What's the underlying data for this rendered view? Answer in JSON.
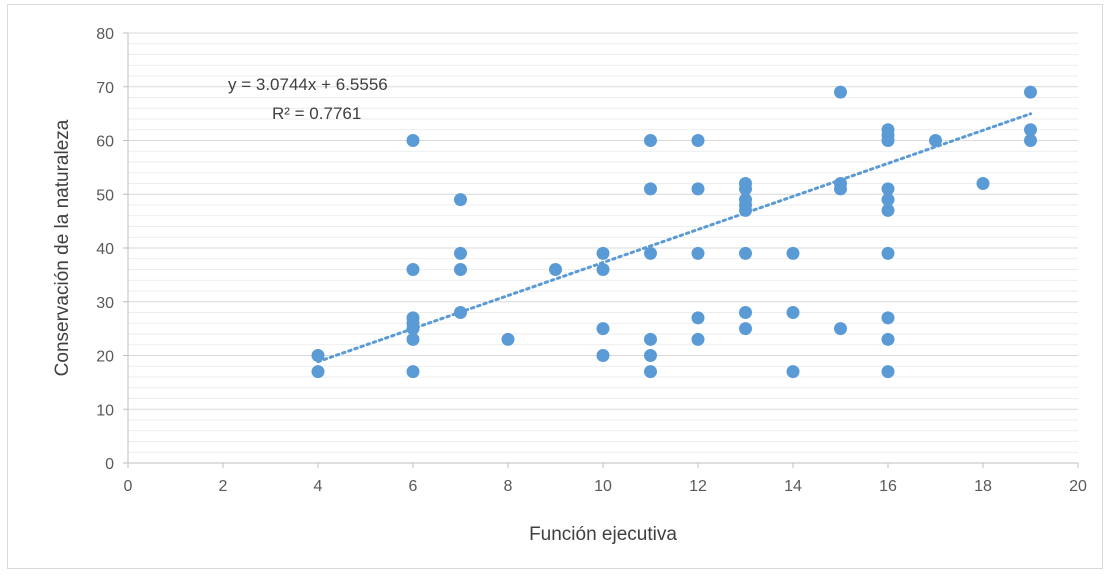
{
  "chart_data": {
    "type": "scatter",
    "title": "",
    "xlabel": "Función ejecutiva",
    "ylabel": "Conservación de la naturaleza",
    "xlim": [
      0,
      20
    ],
    "ylim": [
      0,
      80
    ],
    "x_ticks": [
      0,
      2,
      4,
      6,
      8,
      10,
      12,
      14,
      16,
      18,
      20
    ],
    "y_ticks": [
      0,
      10,
      20,
      30,
      40,
      50,
      60,
      70,
      80
    ],
    "grid": true,
    "legend": "none",
    "series": [
      {
        "points": [
          [
            4,
            20
          ],
          [
            4,
            17
          ],
          [
            6,
            60
          ],
          [
            6,
            36
          ],
          [
            6,
            27
          ],
          [
            6,
            26
          ],
          [
            6,
            25
          ],
          [
            6,
            23
          ],
          [
            6,
            17
          ],
          [
            7,
            49
          ],
          [
            7,
            39
          ],
          [
            7,
            36
          ],
          [
            7,
            28
          ],
          [
            8,
            23
          ],
          [
            9,
            36
          ],
          [
            10,
            39
          ],
          [
            10,
            36
          ],
          [
            10,
            25
          ],
          [
            10,
            20
          ],
          [
            11,
            60
          ],
          [
            11,
            51
          ],
          [
            11,
            39
          ],
          [
            11,
            23
          ],
          [
            11,
            20
          ],
          [
            11,
            17
          ],
          [
            12,
            60
          ],
          [
            12,
            51
          ],
          [
            12,
            39
          ],
          [
            12,
            27
          ],
          [
            12,
            23
          ],
          [
            13,
            52
          ],
          [
            13,
            51
          ],
          [
            13,
            49
          ],
          [
            13,
            48
          ],
          [
            13,
            47
          ],
          [
            13,
            39
          ],
          [
            13,
            28
          ],
          [
            13,
            25
          ],
          [
            14,
            39
          ],
          [
            14,
            28
          ],
          [
            14,
            17
          ],
          [
            15,
            69
          ],
          [
            15,
            52
          ],
          [
            15,
            51
          ],
          [
            15,
            25
          ],
          [
            16,
            62
          ],
          [
            16,
            61
          ],
          [
            16,
            60
          ],
          [
            16,
            51
          ],
          [
            16,
            49
          ],
          [
            16,
            47
          ],
          [
            16,
            39
          ],
          [
            16,
            27
          ],
          [
            16,
            23
          ],
          [
            16,
            17
          ],
          [
            17,
            60
          ],
          [
            18,
            52
          ],
          [
            19,
            69
          ],
          [
            19,
            62
          ],
          [
            19,
            60
          ]
        ]
      }
    ],
    "trendline": {
      "type": "linear",
      "slope": 3.0744,
      "intercept": 6.5556,
      "x_range": [
        4,
        19
      ],
      "equation_label": "y = 3.0744x + 6.5556",
      "r2_label": "R² = 0.7761"
    },
    "colors": {
      "marker": "#5b9bd5",
      "trendline": "#5b9bd5",
      "gridline": "#d9d9d9",
      "axis_text": "#595959"
    }
  }
}
